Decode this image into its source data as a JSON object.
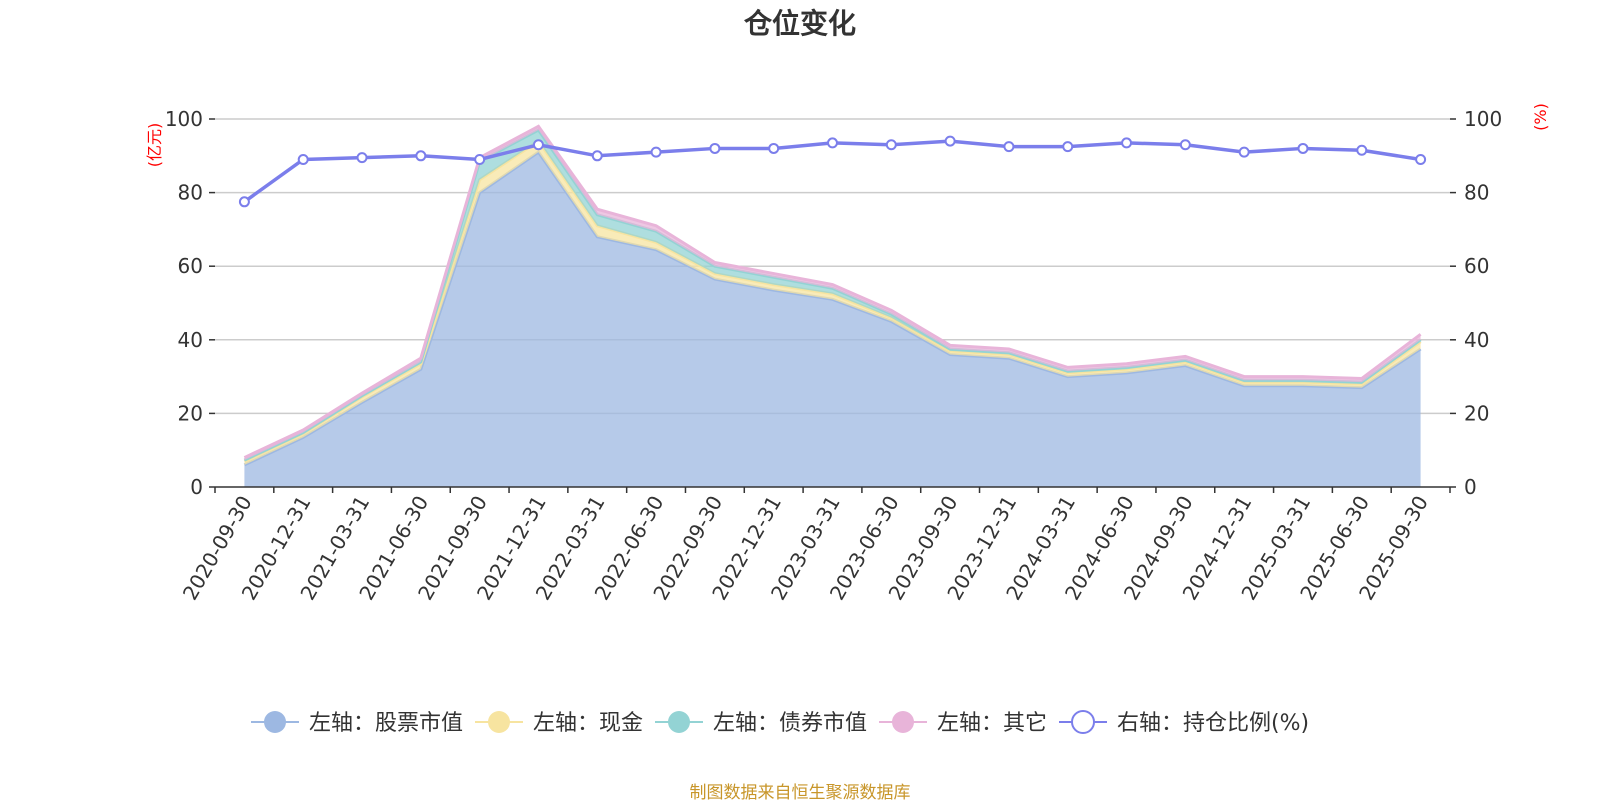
{
  "chart_data": {
    "type": "area",
    "title": "仓位变化",
    "left_axis_unit": "(亿元)",
    "right_axis_unit": "(%)",
    "left_ylim": [
      0,
      100
    ],
    "right_ylim": [
      0,
      100
    ],
    "left_ticks": [
      "0",
      "20",
      "40",
      "60",
      "80",
      "100"
    ],
    "right_ticks": [
      "0",
      "20",
      "40",
      "60",
      "80",
      "100"
    ],
    "categories": [
      "2020-09-30",
      "2020-12-31",
      "2021-03-31",
      "2021-06-30",
      "2021-09-30",
      "2021-12-31",
      "2022-03-31",
      "2022-06-30",
      "2022-09-30",
      "2022-12-31",
      "2023-03-31",
      "2023-06-30",
      "2023-09-30",
      "2023-12-31",
      "2024-03-31",
      "2024-06-30",
      "2024-09-30",
      "2024-12-31",
      "2025-03-31",
      "2025-06-30",
      "2025-09-30"
    ],
    "series": [
      {
        "name": "左轴：股票市值",
        "axis": "left",
        "color": "#9db8e2",
        "values": [
          6.0,
          13.5,
          23.0,
          32.0,
          80.0,
          91.0,
          68.0,
          64.5,
          56.5,
          53.5,
          51.0,
          45.0,
          36.0,
          35.0,
          30.0,
          31.0,
          33.0,
          27.5,
          27.5,
          27.0,
          37.5
        ]
      },
      {
        "name": "左轴：现金",
        "axis": "left",
        "color": "#f7e4a0",
        "values": [
          1.0,
          1.0,
          1.5,
          1.5,
          3.5,
          3.0,
          3.0,
          2.0,
          1.5,
          1.5,
          1.5,
          1.0,
          1.0,
          1.0,
          1.0,
          1.0,
          1.0,
          1.0,
          1.0,
          1.0,
          2.0
        ]
      },
      {
        "name": "左轴：债券市值",
        "axis": "left",
        "color": "#93d3d4",
        "values": [
          0.3,
          0.3,
          0.3,
          0.5,
          5.0,
          3.0,
          3.0,
          3.0,
          2.0,
          2.0,
          1.5,
          1.0,
          0.5,
          0.5,
          0.5,
          0.5,
          0.5,
          0.5,
          0.5,
          0.5,
          0.5
        ]
      },
      {
        "name": "左轴：其它",
        "axis": "left",
        "color": "#e8b4d9",
        "values": [
          0.7,
          0.7,
          0.7,
          1.0,
          1.0,
          1.0,
          1.5,
          1.5,
          1.0,
          1.0,
          1.0,
          1.0,
          1.0,
          1.0,
          1.0,
          1.0,
          1.0,
          1.0,
          1.0,
          1.0,
          1.5
        ]
      },
      {
        "name": "右轴：持仓比例(%)",
        "axis": "right",
        "color": "#7b7eeb",
        "values": [
          77.5,
          89.0,
          89.5,
          90.0,
          89.0,
          93.0,
          90.0,
          91.0,
          92.0,
          92.0,
          93.5,
          93.0,
          94.0,
          92.5,
          92.5,
          93.5,
          93.0,
          91.0,
          92.0,
          91.5,
          89.0
        ]
      }
    ],
    "grid": true,
    "legend_position": "bottom"
  },
  "footer": "制图数据来自恒生聚源数据库"
}
